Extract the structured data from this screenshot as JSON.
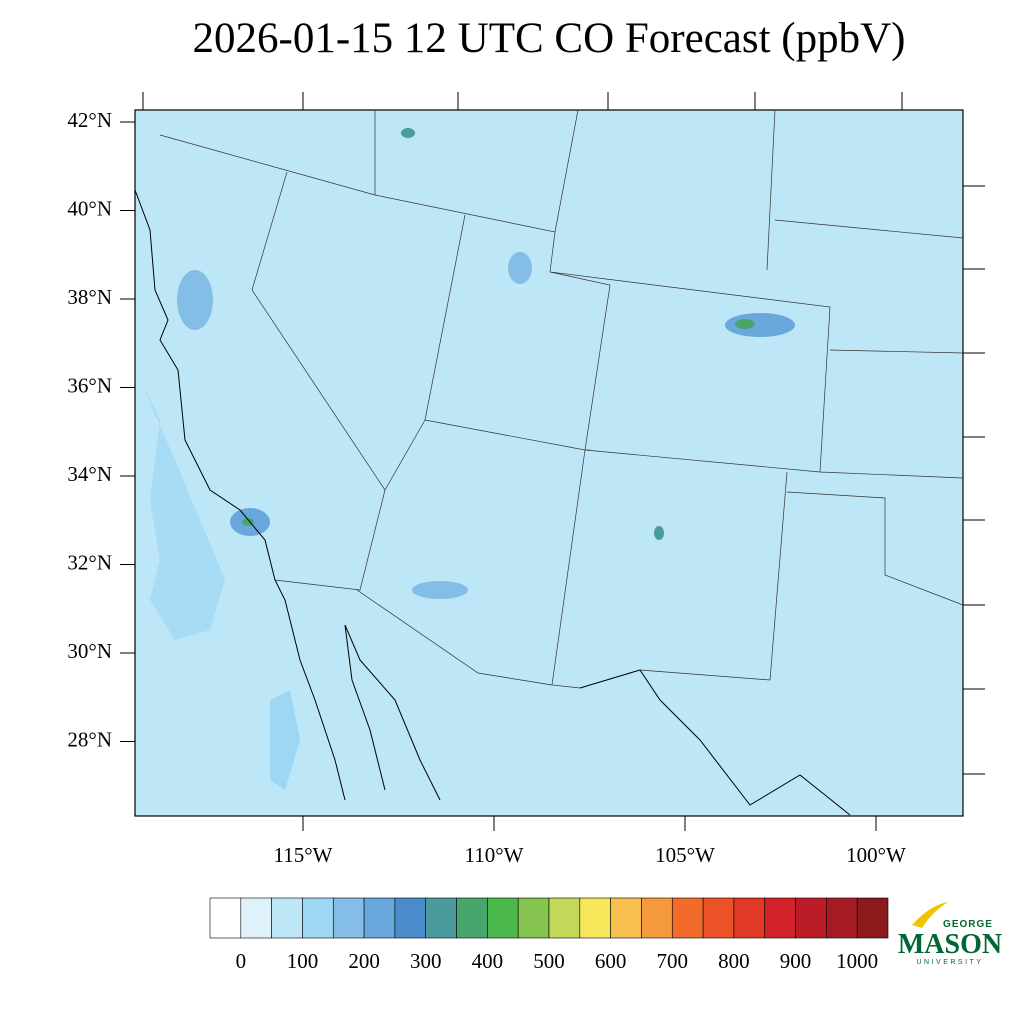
{
  "title": "2026-01-15 12 UTC CO Forecast (ppbV)",
  "map": {
    "lat_labels": [
      "42°N",
      "40°N",
      "38°N",
      "36°N",
      "34°N",
      "32°N",
      "30°N",
      "28°N"
    ],
    "lon_labels": [
      "115°W",
      "110°W",
      "105°W",
      "100°W"
    ]
  },
  "colorbar": {
    "colors": [
      "#ffffff",
      "#dff2fb",
      "#bde6f7",
      "#9dd7f3",
      "#84bde6",
      "#68a8dc",
      "#4a8ccb",
      "#4a9b9e",
      "#48a56b",
      "#4ab84a",
      "#85c44e",
      "#c3d85a",
      "#f5e65a",
      "#f7bf4e",
      "#f59a3c",
      "#f26b2a",
      "#ec5228",
      "#e03a26",
      "#d1222a",
      "#bc1c28",
      "#a71c24",
      "#8c1a1c"
    ],
    "labels": [
      0,
      100,
      200,
      300,
      400,
      500,
      600,
      700,
      800,
      900,
      1000
    ]
  },
  "logo": {
    "top": "GEORGE",
    "name": "MASON",
    "bottom": "UNIVERSITY"
  }
}
